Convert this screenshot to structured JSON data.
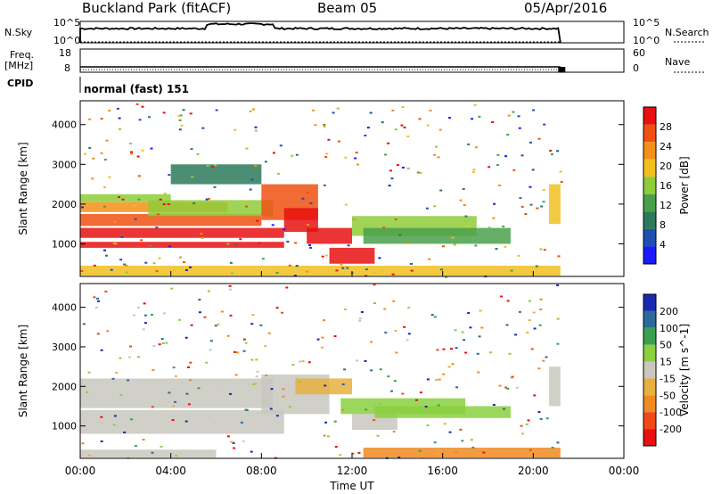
{
  "header": {
    "station": "Buckland Park (fitACF)",
    "beam": "Beam 05",
    "date": "05/Apr/2016"
  },
  "noise_panel": {
    "left_label": "N.Sky",
    "left_ticks": [
      "10^5",
      "10^0"
    ],
    "right_label": "N.Search",
    "right_ticks": [
      "10^5",
      "10^0"
    ]
  },
  "freq_panel": {
    "left_label_1": "Freq.",
    "left_label_2": "[MHz]",
    "left_ticks": [
      "18",
      "8"
    ],
    "right_label": "Nave",
    "right_ticks": [
      "60",
      "0"
    ]
  },
  "cpid": {
    "label": "CPID",
    "value": "normal (fast) 151"
  },
  "colors": {
    "power": [
      "#1a1aff",
      "#1f4fb0",
      "#2b7a5a",
      "#4aa04a",
      "#8fcc3a",
      "#f0c020",
      "#f39018",
      "#f05010",
      "#e81010"
    ],
    "velocity": [
      "#e81010",
      "#f04818",
      "#f08a20",
      "#e8b040",
      "#c8c8c0",
      "#8ad040",
      "#3aa050",
      "#2c6a9a",
      "#1a2ab0"
    ]
  },
  "chart_data": [
    {
      "type": "heatmap",
      "name": "power",
      "ylabel": "Slant Range [km]",
      "yticks": [
        "4000",
        "3000",
        "2000",
        "1000"
      ],
      "ytick_values": [
        4000,
        3000,
        2000,
        1000
      ],
      "ylim": [
        180,
        4600
      ],
      "xlim_hours": [
        0,
        24
      ],
      "colorbar_label": "Power [dB]",
      "colorbar_ticks": [
        "28",
        "24",
        "20",
        "16",
        "12",
        "8",
        "4"
      ],
      "colorbar_range": [
        0,
        32
      ],
      "echo_regions": [
        {
          "t0": 0.0,
          "t1": 9.0,
          "r0": 900,
          "r1": 1050,
          "level": 8
        },
        {
          "t0": 0.0,
          "t1": 9.0,
          "r0": 1150,
          "r1": 1400,
          "level": 8
        },
        {
          "t0": 0.0,
          "t1": 8.0,
          "r0": 1450,
          "r1": 1750,
          "level": 7
        },
        {
          "t0": 0.0,
          "t1": 6.5,
          "r0": 1800,
          "r1": 2050,
          "level": 6
        },
        {
          "t0": 0.0,
          "t1": 4.0,
          "r0": 2050,
          "r1": 2250,
          "level": 4
        },
        {
          "t0": 3.0,
          "t1": 8.5,
          "r0": 1700,
          "r1": 2100,
          "level": 4
        },
        {
          "t0": 8.0,
          "t1": 10.5,
          "r0": 1600,
          "r1": 2500,
          "level": 7
        },
        {
          "t0": 9.0,
          "t1": 10.5,
          "r0": 1300,
          "r1": 1900,
          "level": 8
        },
        {
          "t0": 10.0,
          "t1": 12.0,
          "r0": 1000,
          "r1": 1400,
          "level": 8
        },
        {
          "t0": 11.0,
          "t1": 13.0,
          "r0": 500,
          "r1": 900,
          "level": 8
        },
        {
          "t0": 12.0,
          "t1": 17.5,
          "r0": 1200,
          "r1": 1700,
          "level": 4
        },
        {
          "t0": 12.5,
          "t1": 19.0,
          "r0": 1000,
          "r1": 1400,
          "level": 3
        },
        {
          "t0": 0.0,
          "t1": 21.2,
          "r0": 200,
          "r1": 450,
          "level": 5
        },
        {
          "t0": 4.0,
          "t1": 8.0,
          "r0": 2500,
          "r1": 3000,
          "level": 2
        },
        {
          "t0": 20.7,
          "t1": 21.2,
          "r0": 1500,
          "r1": 2500,
          "level": 5
        }
      ]
    },
    {
      "type": "heatmap",
      "name": "velocity",
      "ylabel": "Slant Range [km]",
      "yticks": [
        "4000",
        "3000",
        "2000",
        "1000"
      ],
      "ytick_values": [
        4000,
        3000,
        2000,
        1000
      ],
      "ylim": [
        180,
        4600
      ],
      "xlim_hours": [
        0,
        24
      ],
      "colorbar_label": "Velocity [m s^-1]",
      "colorbar_ticks": [
        "200",
        "100",
        "50",
        "15",
        "-15",
        "-50",
        "-100",
        "-200"
      ],
      "echo_regions": [
        {
          "t0": 0.0,
          "t1": 9.0,
          "r0": 800,
          "r1": 1400,
          "level": 4
        },
        {
          "t0": 0.0,
          "t1": 8.5,
          "r0": 1450,
          "r1": 2200,
          "level": 4
        },
        {
          "t0": 8.0,
          "t1": 11.0,
          "r0": 1300,
          "r1": 2300,
          "level": 4
        },
        {
          "t0": 9.5,
          "t1": 12.0,
          "r0": 1800,
          "r1": 2200,
          "level": 3
        },
        {
          "t0": 11.5,
          "t1": 17.0,
          "r0": 1300,
          "r1": 1700,
          "level": 5
        },
        {
          "t0": 12.0,
          "t1": 14.0,
          "r0": 900,
          "r1": 1300,
          "level": 4
        },
        {
          "t0": 13.0,
          "t1": 19.0,
          "r0": 1200,
          "r1": 1500,
          "level": 5
        },
        {
          "t0": 12.5,
          "t1": 21.2,
          "r0": 200,
          "r1": 450,
          "level": 2
        },
        {
          "t0": 0.0,
          "t1": 6.0,
          "r0": 200,
          "r1": 400,
          "level": 4
        },
        {
          "t0": 20.7,
          "t1": 21.2,
          "r0": 1500,
          "r1": 2500,
          "level": 4
        }
      ]
    }
  ],
  "x_axis": {
    "label": "Time UT",
    "ticks": [
      "00:00",
      "04:00",
      "08:00",
      "12:00",
      "16:00",
      "20:00",
      "00:00"
    ],
    "tick_hours": [
      0,
      4,
      8,
      12,
      16,
      20,
      24
    ]
  }
}
